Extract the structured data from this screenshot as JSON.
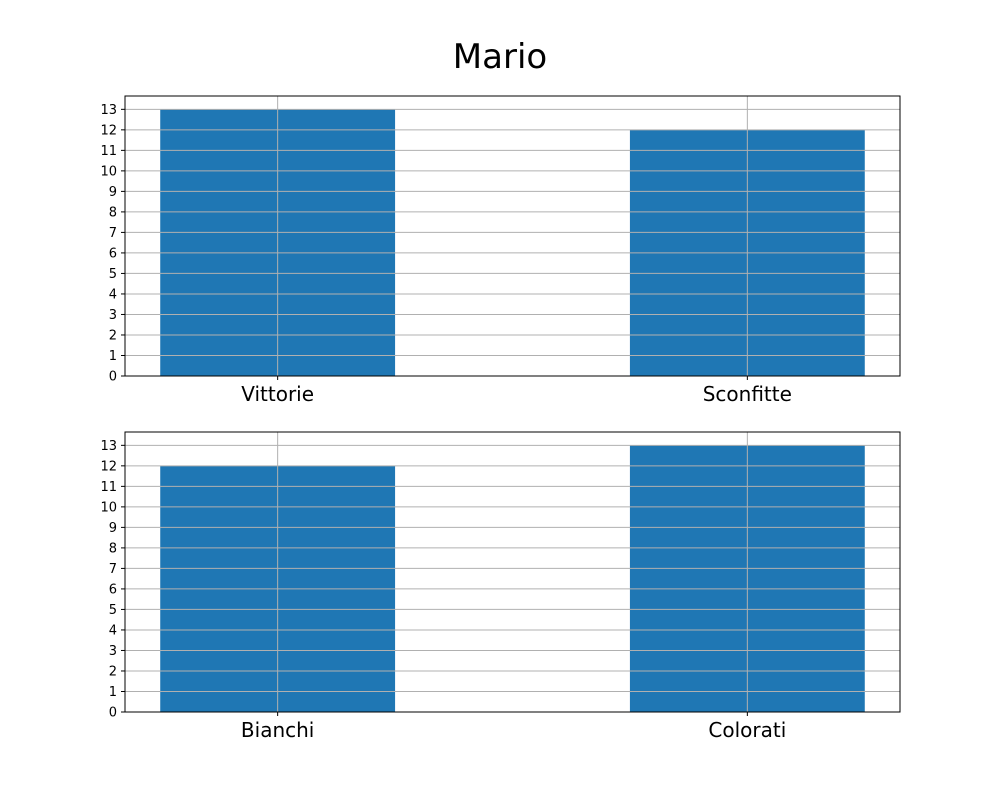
{
  "figure": {
    "title": "Mario"
  },
  "chart_data": [
    {
      "type": "bar",
      "categories": [
        "Vittorie",
        "Sconfitte"
      ],
      "values": [
        13,
        12
      ],
      "ylim": [
        0,
        13.65
      ],
      "yticks": [
        0,
        1,
        2,
        3,
        4,
        5,
        6,
        7,
        8,
        9,
        10,
        11,
        12,
        13
      ],
      "grid": true,
      "bar_color": "#1f77b4"
    },
    {
      "type": "bar",
      "categories": [
        "Bianchi",
        "Colorati"
      ],
      "values": [
        12,
        13
      ],
      "ylim": [
        0,
        13.65
      ],
      "yticks": [
        0,
        1,
        2,
        3,
        4,
        5,
        6,
        7,
        8,
        9,
        10,
        11,
        12,
        13
      ],
      "grid": true,
      "bar_color": "#1f77b4"
    }
  ]
}
